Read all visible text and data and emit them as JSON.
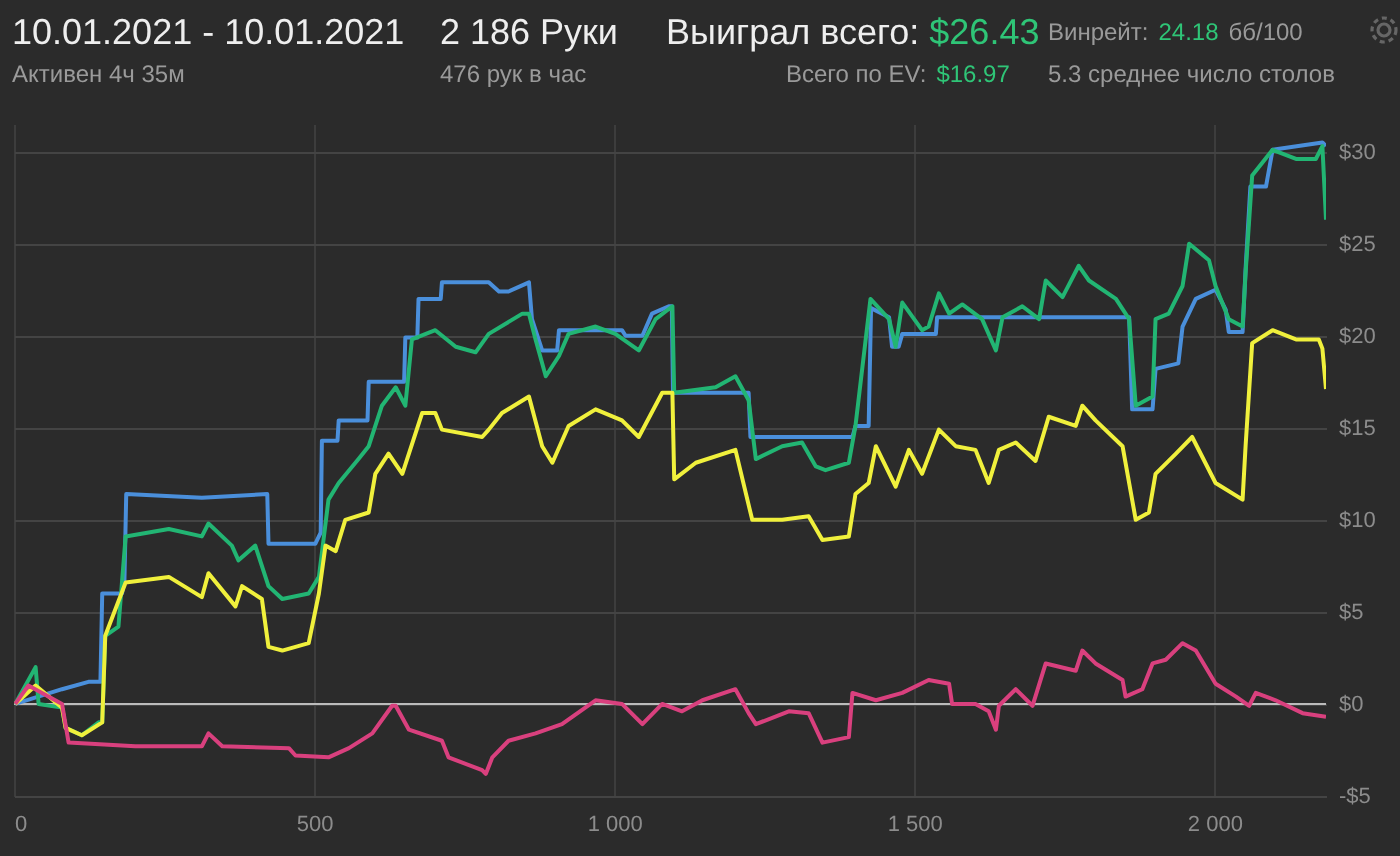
{
  "chart_data": {
    "type": "line",
    "title": "10.01.2021 - 10.01.2021",
    "subtitle": "Активен 4ч 35м",
    "annotations": [
      "2 186 Руки",
      "476 рук в час",
      "Выиграл всего:",
      "$26.43",
      "Винрейт:",
      "24.18",
      "бб/100",
      "Всего по EV:",
      "$16.97",
      "5.3 среднее число столов"
    ],
    "xlim": [
      0,
      2186
    ],
    "xticks": [
      0,
      500,
      {
        "value": 1000,
        "label": "1 000"
      },
      {
        "value": 1500,
        "label": "1 500"
      },
      {
        "value": 2000,
        "label": "2 000"
      }
    ],
    "ylim": [
      -5,
      31.5
    ],
    "yticks": [
      {
        "value": -5,
        "label": "-$5"
      },
      {
        "value": 0,
        "label": "$0"
      },
      {
        "value": 5,
        "label": "$5"
      },
      {
        "value": 10,
        "label": "$10"
      },
      {
        "value": 15,
        "label": "$15"
      },
      {
        "value": 20,
        "label": "$20"
      },
      {
        "value": 25,
        "label": "$25"
      },
      {
        "value": 30,
        "label": "$30"
      }
    ],
    "grid": true,
    "ref_lines": [
      {
        "axis": "y",
        "value": 0,
        "color": "#bbbbbb"
      }
    ],
    "series": [
      {
        "color": "#4a8fdb",
        "x": [
          2,
          80,
          124,
          144,
          147,
          180,
          184,
          187,
          313,
          422,
          424,
          502,
          511,
          513,
          539,
          541,
          589,
          591,
          650,
          652,
          672,
          674,
          711,
          713,
          791,
          808,
          824,
          858,
          863,
          880,
          905,
          908,
          1013,
          1019,
          1047,
          1063,
          1091,
          1096,
          1098,
          1224,
          1227,
          1397,
          1402,
          1424,
          1428,
          1458,
          1463,
          1474,
          1480,
          1536,
          1538,
          1858,
          1863,
          1897,
          1902,
          1940,
          1947,
          1969,
          2002,
          2019,
          2024,
          2047,
          2052,
          2060,
          2086,
          2097,
          2180,
          2186
        ],
        "values": [
          0,
          0.8,
          1.2,
          1.2,
          6.0,
          6.0,
          6.7,
          11.4,
          11.2,
          11.4,
          8.7,
          8.7,
          9.3,
          14.3,
          14.3,
          15.4,
          15.4,
          17.5,
          17.5,
          19.9,
          19.9,
          22.0,
          22.0,
          22.9,
          22.9,
          22.4,
          22.4,
          22.9,
          20.9,
          19.2,
          19.2,
          20.3,
          20.3,
          20.0,
          20.0,
          21.2,
          21.6,
          21.6,
          16.9,
          16.9,
          14.5,
          14.5,
          15.1,
          15.1,
          21.5,
          21.0,
          19.4,
          19.4,
          20.1,
          20.1,
          21.0,
          21.0,
          16.0,
          16.0,
          18.2,
          18.5,
          20.5,
          22.0,
          22.5,
          21.4,
          20.2,
          20.2,
          23.6,
          28.1,
          28.1,
          30.1,
          30.5,
          30.3
        ]
      },
      {
        "color": "#22b573",
        "x": [
          2,
          36,
          41,
          80,
          86,
          113,
          141,
          147,
          152,
          174,
          186,
          258,
          313,
          324,
          363,
          374,
          402,
          424,
          447,
          491,
          508,
          524,
          541,
          574,
          591,
          613,
          636,
          652,
          663,
          702,
          736,
          769,
          791,
          847,
          858,
          869,
          886,
          908,
          924,
          969,
          1002,
          1041,
          1069,
          1097,
          1100,
          1169,
          1202,
          1224,
          1236,
          1280,
          1313,
          1336,
          1352,
          1391,
          1402,
          1427,
          1458,
          1469,
          1480,
          1513,
          1524,
          1541,
          1558,
          1580,
          1613,
          1636,
          1647,
          1680,
          1708,
          1719,
          1747,
          1774,
          1791,
          1836,
          1858,
          1869,
          1897,
          1902,
          1924,
          1947,
          1958,
          1991,
          2002,
          2024,
          2047,
          2052,
          2063,
          2097,
          2136,
          2169,
          2180,
          2186
        ],
        "values": [
          0,
          2.0,
          0,
          -0.2,
          -1.3,
          -1.7,
          -1.0,
          -1.0,
          3.7,
          4.2,
          9.1,
          9.5,
          9.1,
          9.8,
          8.6,
          7.8,
          8.6,
          6.4,
          5.7,
          6.0,
          6.9,
          11.1,
          12.0,
          13.3,
          14.0,
          16.2,
          17.2,
          16.2,
          19.8,
          20.3,
          19.4,
          19.1,
          20.1,
          21.2,
          21.2,
          19.8,
          17.8,
          18.9,
          20.1,
          20.5,
          20.1,
          19.2,
          20.9,
          21.6,
          16.9,
          17.2,
          17.8,
          16.5,
          13.3,
          14.0,
          14.2,
          12.9,
          12.7,
          13.1,
          15.1,
          22.0,
          20.9,
          19.4,
          21.8,
          20.3,
          20.5,
          22.3,
          21.2,
          21.7,
          20.9,
          19.2,
          21.0,
          21.6,
          20.9,
          23.0,
          22.1,
          23.8,
          23.0,
          22.0,
          20.9,
          16.2,
          16.7,
          20.9,
          21.2,
          22.7,
          25.0,
          24.1,
          22.7,
          20.9,
          20.5,
          23.4,
          28.7,
          30.1,
          29.6,
          29.6,
          30.3,
          26.3
        ]
      },
      {
        "color": "#f0f03c",
        "x": [
          2,
          36,
          80,
          86,
          113,
          147,
          152,
          186,
          258,
          313,
          324,
          369,
          380,
          413,
          424,
          447,
          491,
          508,
          519,
          536,
          552,
          591,
          602,
          624,
          647,
          658,
          680,
          702,
          713,
          780,
          791,
          813,
          858,
          880,
          897,
          924,
          969,
          1013,
          1041,
          1080,
          1097,
          1100,
          1136,
          1202,
          1230,
          1280,
          1324,
          1347,
          1391,
          1402,
          1424,
          1436,
          1469,
          1491,
          1513,
          1541,
          1569,
          1602,
          1624,
          1641,
          1669,
          1702,
          1724,
          1769,
          1780,
          1802,
          1847,
          1869,
          1891,
          1902,
          1936,
          1963,
          2002,
          2047,
          2052,
          2063,
          2097,
          2136,
          2174,
          2180,
          2186
        ],
        "values": [
          0,
          1.0,
          -0.2,
          -1.3,
          -1.7,
          -1.0,
          3.7,
          6.6,
          6.9,
          5.8,
          7.1,
          5.3,
          6.4,
          5.7,
          3.1,
          2.9,
          3.3,
          6.0,
          8.6,
          8.3,
          10.0,
          10.4,
          12.5,
          13.6,
          12.5,
          13.6,
          15.8,
          15.8,
          14.9,
          14.5,
          14.9,
          15.8,
          16.7,
          14.0,
          13.1,
          15.1,
          16.0,
          15.4,
          14.5,
          16.9,
          16.9,
          12.2,
          13.1,
          13.8,
          10.0,
          10.0,
          10.2,
          8.9,
          9.1,
          11.4,
          12.0,
          14.0,
          11.8,
          13.8,
          12.5,
          14.9,
          14.0,
          13.8,
          12.0,
          13.8,
          14.2,
          13.2,
          15.6,
          15.1,
          16.2,
          15.4,
          14.0,
          10.0,
          10.4,
          12.5,
          13.6,
          14.5,
          12.0,
          11.1,
          14.0,
          19.6,
          20.3,
          19.8,
          19.8,
          19.3,
          17.1
        ]
      },
      {
        "color": "#d9407e",
        "x": [
          2,
          24,
          80,
          91,
          202,
          313,
          324,
          347,
          458,
          469,
          524,
          558,
          597,
          630,
          636,
          658,
          713,
          724,
          780,
          786,
          797,
          824,
          869,
          913,
          969,
          1013,
          1047,
          1080,
          1113,
          1147,
          1202,
          1224,
          1236,
          1291,
          1324,
          1347,
          1391,
          1397,
          1436,
          1480,
          1524,
          1558,
          1563,
          1602,
          1624,
          1636,
          1641,
          1669,
          1697,
          1719,
          1769,
          1780,
          1802,
          1847,
          1852,
          1880,
          1897,
          1919,
          1947,
          1969,
          2002,
          2036,
          2058,
          2069,
          2102,
          2147,
          2186
        ],
        "values": [
          0,
          1.0,
          0,
          -2.1,
          -2.3,
          -2.3,
          -1.6,
          -2.3,
          -2.4,
          -2.8,
          -2.9,
          -2.4,
          -1.6,
          -0.1,
          -0.1,
          -1.4,
          -2.0,
          -2.9,
          -3.6,
          -3.8,
          -2.9,
          -2.0,
          -1.6,
          -1.1,
          0.2,
          0,
          -1.1,
          0,
          -0.4,
          0.2,
          0.8,
          -0.5,
          -1.1,
          -0.4,
          -0.5,
          -2.1,
          -1.8,
          0.6,
          0.2,
          0.6,
          1.3,
          1.1,
          0,
          0,
          -0.4,
          -1.4,
          -0.1,
          0.8,
          -0.1,
          2.2,
          1.8,
          2.9,
          2.2,
          1.3,
          0.4,
          0.8,
          2.2,
          2.4,
          3.3,
          2.9,
          1.1,
          0.4,
          -0.1,
          0.6,
          0.2,
          -0.5,
          -0.7
        ]
      }
    ]
  }
}
